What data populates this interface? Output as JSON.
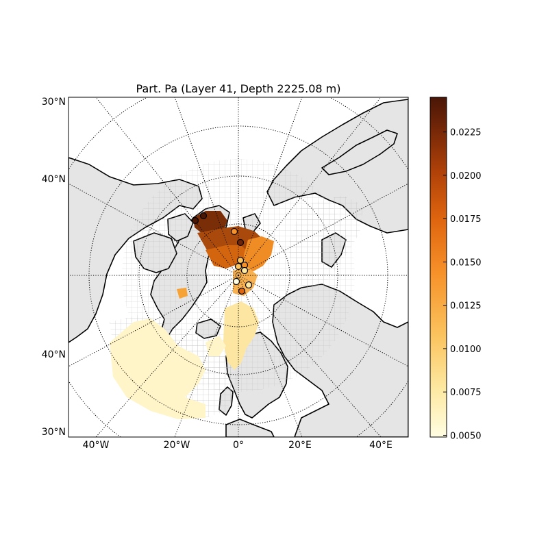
{
  "title": "Part. Pa (Layer 41, Depth 2225.08 m)",
  "lat_labels": [
    "30°N",
    "40°N",
    "40°N",
    "30°N"
  ],
  "lon_labels": [
    "40°W",
    "20°W",
    "0°",
    "20°E",
    "40°E"
  ],
  "colorbar": {
    "ticks": [
      "0.0050",
      "0.0075",
      "0.0100",
      "0.0125",
      "0.0150",
      "0.0175",
      "0.0200",
      "0.0225"
    ],
    "min": 0.0049,
    "max": 0.0245,
    "colors": [
      "#fffde2",
      "#fde9a2",
      "#fbc35e",
      "#f7922a",
      "#df650f",
      "#b04108",
      "#6e2408",
      "#4a1606"
    ]
  },
  "colors": {
    "land": "#e5e5e5",
    "coastline": "#000000",
    "grid_mesh": "#b3b3b3",
    "graticule": "#000000"
  },
  "observations": [
    0.0235,
    0.0235,
    0.012,
    0.023,
    0.0115,
    0.011,
    0.0125,
    0.009,
    0.006,
    0.016,
    0.008
  ]
}
